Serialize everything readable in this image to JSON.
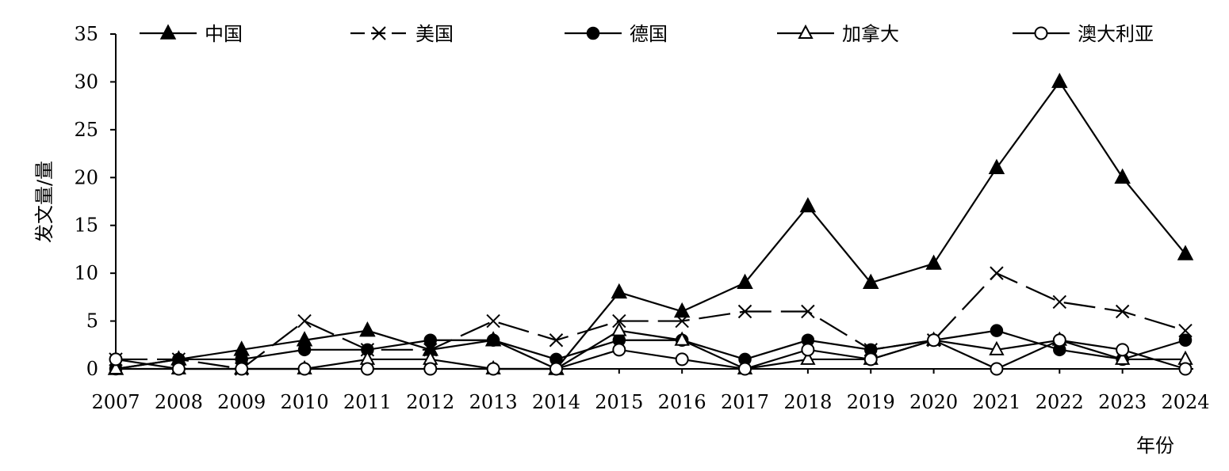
{
  "chart_data": {
    "type": "line",
    "title": "",
    "xlabel": "年份",
    "ylabel": "发文量/量",
    "ylim": [
      0,
      35
    ],
    "yticks": [
      0,
      5,
      10,
      15,
      20,
      25,
      30,
      35
    ],
    "categories": [
      "2007",
      "2008",
      "2009",
      "2010",
      "2011",
      "2012",
      "2013",
      "2014",
      "2015",
      "2016",
      "2017",
      "2018",
      "2019",
      "2020",
      "2021",
      "2022",
      "2023",
      "2024"
    ],
    "legend_position": "top",
    "grid": false,
    "series": [
      {
        "name": "中国",
        "marker": "filled-triangle",
        "dash": "solid",
        "values": [
          0,
          1,
          2,
          3,
          4,
          2,
          3,
          0,
          8,
          6,
          9,
          17,
          9,
          11,
          21,
          30,
          20,
          12
        ]
      },
      {
        "name": "美国",
        "marker": "cross",
        "dash": "dashed",
        "values": [
          1,
          1,
          0,
          5,
          2,
          2,
          5,
          3,
          5,
          5,
          6,
          6,
          2,
          3,
          10,
          7,
          6,
          4
        ]
      },
      {
        "name": "德国",
        "marker": "filled-circle",
        "dash": "solid",
        "values": [
          0,
          1,
          1,
          2,
          2,
          3,
          3,
          1,
          3,
          3,
          1,
          3,
          2,
          3,
          4,
          2,
          1,
          3
        ]
      },
      {
        "name": "加拿大",
        "marker": "open-triangle",
        "dash": "solid",
        "values": [
          0,
          0,
          0,
          0,
          1,
          1,
          0,
          0,
          4,
          3,
          0,
          1,
          1,
          3,
          2,
          3,
          1,
          1
        ]
      },
      {
        "name": "澳大利亚",
        "marker": "open-circle",
        "dash": "solid",
        "values": [
          1,
          0,
          0,
          0,
          0,
          0,
          0,
          0,
          2,
          1,
          0,
          2,
          1,
          3,
          0,
          3,
          2,
          0
        ]
      }
    ]
  }
}
